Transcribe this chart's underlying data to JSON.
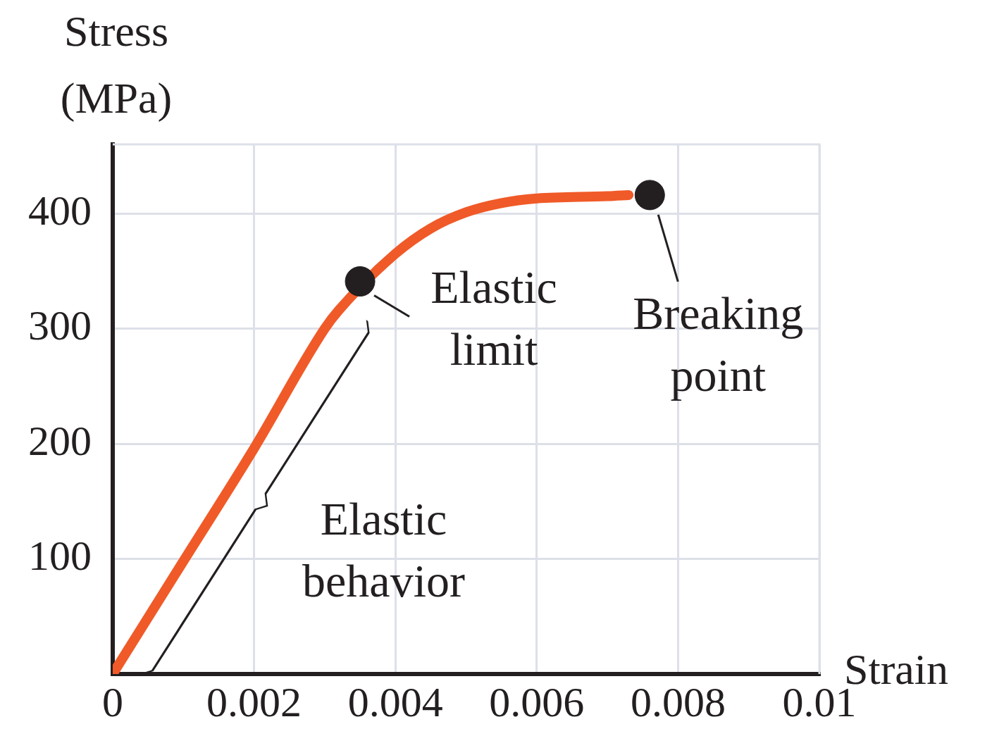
{
  "chart_data": {
    "type": "line",
    "ylabel": "Stress (MPa)",
    "xlabel": "Strain",
    "xlim": [
      0,
      0.01
    ],
    "ylim": [
      0,
      460
    ],
    "xticks": [
      0,
      0.002,
      0.004,
      0.006,
      0.008,
      0.01
    ],
    "yticks": [
      100,
      200,
      300,
      400
    ],
    "grid": true,
    "legend": false,
    "series": [
      {
        "type": "line",
        "marker": "none",
        "color": "#f05a28",
        "x": [
          0,
          0.001,
          0.002,
          0.003,
          0.0032,
          0.004,
          0.0045,
          0.005,
          0.0055,
          0.006,
          0.007,
          0.0073
        ],
        "values": [
          0,
          98,
          196,
          300,
          316,
          365,
          387,
          401,
          409,
          413,
          415,
          416
        ]
      },
      {
        "type": "scatter",
        "marker": "circle",
        "color": "#231f20",
        "x": [
          0.0035,
          0.0076
        ],
        "values": [
          341,
          416
        ]
      }
    ],
    "annotations": [
      {
        "text": "Elastic limit",
        "x": 0.0035,
        "y": 341
      },
      {
        "text": "Breaking point",
        "x": 0.0076,
        "y": 416
      },
      {
        "text": "Elastic behavior",
        "x": 0.0017,
        "y": 170
      }
    ]
  }
}
